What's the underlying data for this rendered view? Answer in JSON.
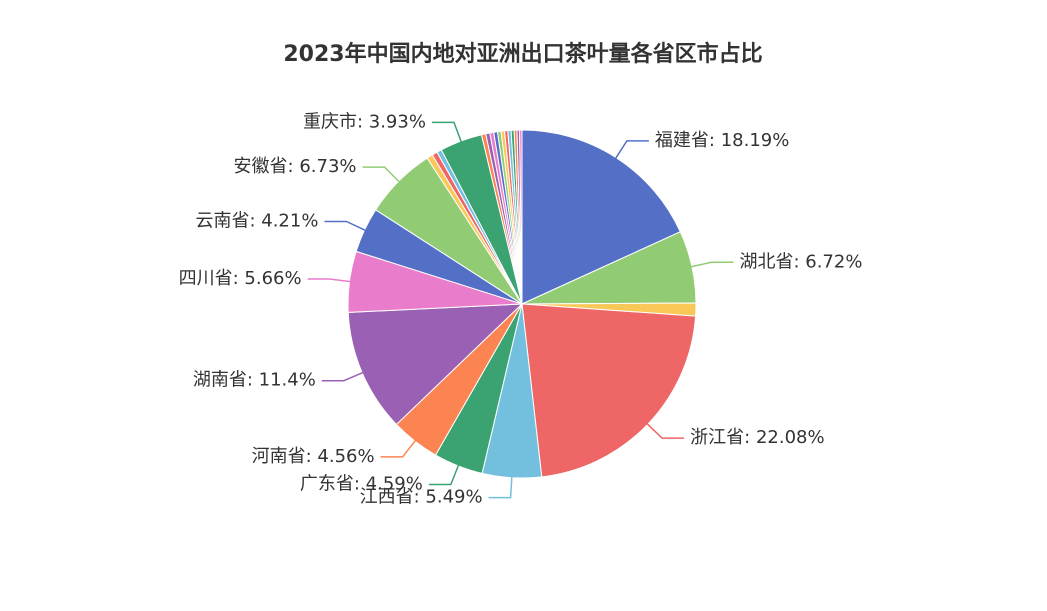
{
  "chart_data": {
    "type": "pie",
    "title": "2023年中国内地对亚洲出口茶叶量各省区市占比",
    "labels": [
      "福建省: 18.19%",
      "湖北省: 6.72%",
      null,
      "浙江省: 22.08%",
      "江西省: 5.49%",
      "广东省: 4.59%",
      "河南省: 4.56%",
      "湖南省: 11.4%",
      "四川省: 5.66%",
      "云南省: 4.21%",
      "安徽省: 6.73%",
      null,
      null,
      null,
      "重庆市: 3.93%",
      null,
      null,
      null,
      null,
      null,
      null,
      null,
      null,
      null,
      null,
      null,
      null
    ],
    "values": [
      18.19,
      6.72,
      1.2,
      22.08,
      5.49,
      4.59,
      4.56,
      11.4,
      5.66,
      4.21,
      6.73,
      0.55,
      0.5,
      0.45,
      3.93,
      0.4,
      0.38,
      0.36,
      0.35,
      0.33,
      0.32,
      0.3,
      0.3,
      0.28,
      0.26,
      0.24,
      0.22
    ],
    "colors": [
      "#5470c6",
      "#91cc75",
      "#fac858",
      "#ee6666",
      "#73c0de",
      "#3ba272",
      "#fc8452",
      "#9a60b4",
      "#ea7ccc",
      "#5470c6",
      "#91cc75",
      "#fac858",
      "#ee6666",
      "#73c0de",
      "#3ba272",
      "#fc8452",
      "#9a60b4",
      "#ea7ccc",
      "#5470c6",
      "#91cc75",
      "#fac858",
      "#ee6666",
      "#73c0de",
      "#3ba272",
      "#fc8452",
      "#9a60b4",
      "#ea7ccc"
    ]
  }
}
